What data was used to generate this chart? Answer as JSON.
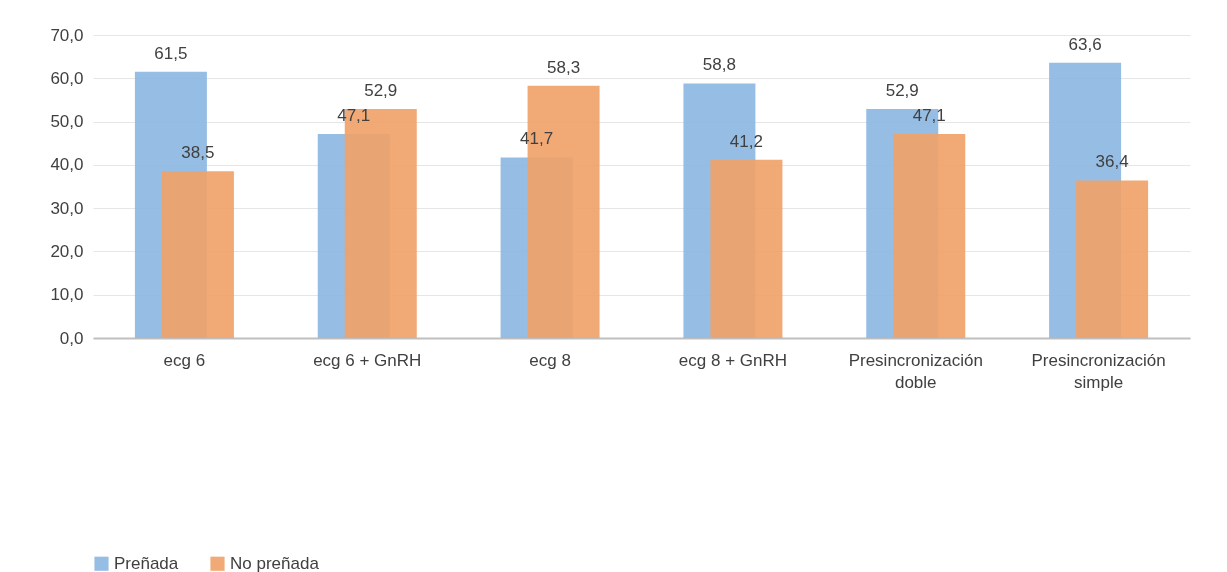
{
  "chart_data": {
    "type": "bar",
    "categories": [
      "ecg 6",
      "ecg 6 + GnRH",
      "ecg 8",
      "ecg 8 + GnRH",
      "Presincronización doble",
      "Presincronización simple"
    ],
    "series": [
      {
        "name": "Preñada",
        "color": "#8db8e2",
        "values": [
          61.5,
          47.1,
          41.7,
          58.8,
          52.9,
          63.6
        ],
        "value_labels": [
          "61,5",
          "47,1",
          "41,7",
          "58,8",
          "52,9",
          "63,6"
        ]
      },
      {
        "name": "No preñada",
        "color": "#f0a26a",
        "values": [
          38.5,
          52.9,
          58.3,
          41.2,
          47.1,
          36.4
        ],
        "value_labels": [
          "38,5",
          "52,9",
          "58,3",
          "41,2",
          "47,1",
          "36,4"
        ]
      }
    ],
    "ylim": [
      0,
      70
    ],
    "yticks": [
      {
        "value": 0,
        "label": "0,0"
      },
      {
        "value": 10,
        "label": "10,0"
      },
      {
        "value": 20,
        "label": "20,0"
      },
      {
        "value": 30,
        "label": "30,0"
      },
      {
        "value": 40,
        "label": "40,0"
      },
      {
        "value": 50,
        "label": "50,0"
      },
      {
        "value": 60,
        "label": "60,0"
      },
      {
        "value": 70,
        "label": "70,0"
      }
    ],
    "grid": "y",
    "legend": "bottom"
  }
}
